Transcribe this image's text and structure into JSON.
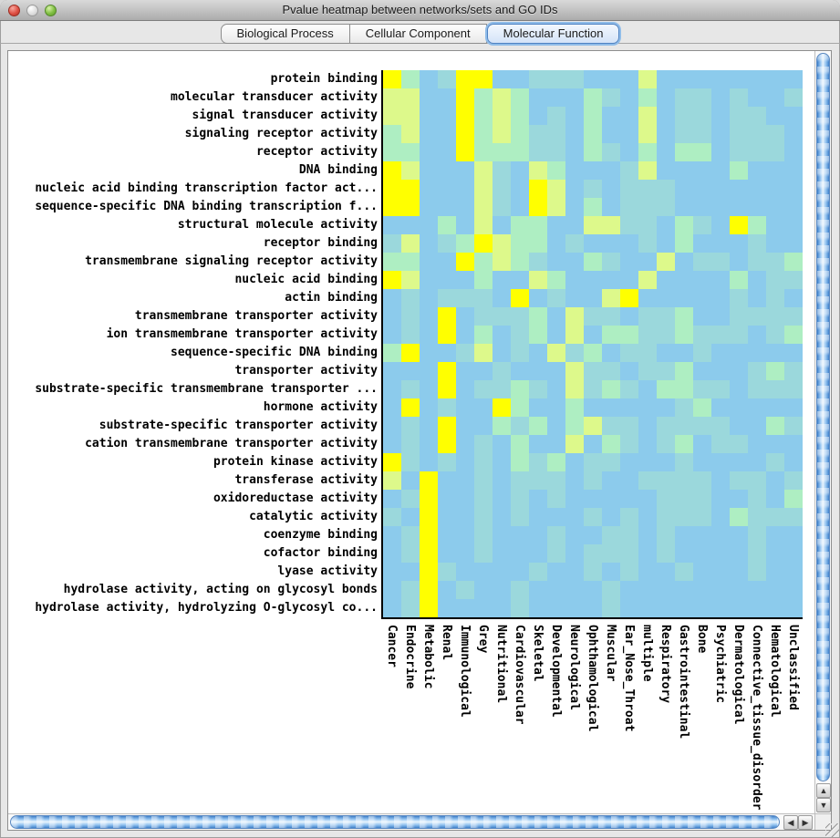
{
  "window": {
    "title": "Pvalue heatmap between networks/sets and GO IDs"
  },
  "tabs": [
    {
      "label": "Biological Process",
      "selected": false
    },
    {
      "label": "Cellular Component",
      "selected": false
    },
    {
      "label": "Molecular Function",
      "selected": true
    }
  ],
  "chart_data": {
    "type": "heatmap",
    "title": "Pvalue heatmap between networks/sets and GO IDs",
    "legend": "cell color encodes p-value significance: 0=light blue (low) to 4=bright yellow (high)",
    "palette": {
      "0": "#8CCBEC",
      "1": "#9BD8DC",
      "2": "#AEEEC2",
      "3": "#DDF98B",
      "4": "#FFFF00"
    },
    "rows": [
      "protein binding",
      "molecular transducer activity",
      "signal transducer activity",
      "signaling receptor activity",
      "receptor activity",
      "DNA binding",
      "nucleic acid binding transcription factor act...",
      "sequence-specific DNA binding transcription f...",
      "structural molecule activity",
      "receptor binding",
      "transmembrane signaling receptor activity",
      "nucleic acid binding",
      "actin binding",
      "transmembrane transporter activity",
      "ion transmembrane transporter activity",
      "sequence-specific DNA binding",
      "transporter activity",
      "substrate-specific transmembrane transporter ...",
      "hormone activity",
      "substrate-specific transporter activity",
      "cation transmembrane transporter activity",
      "protein kinase activity",
      "transferase activity",
      "oxidoreductase activity",
      "catalytic activity",
      "coenzyme binding",
      "cofactor binding",
      "lyase activity",
      "hydrolase activity, acting on glycosyl bonds",
      "hydrolase activity, hydrolyzing O-glycosyl co..."
    ],
    "columns": [
      "Cancer",
      "Endocrine",
      "Metabolic",
      "Renal",
      "Immunological",
      "Grey",
      "Nutritional",
      "Cardiovascular",
      "Skeletal",
      "Developmental",
      "Neurological",
      "Ophthamological",
      "Muscular",
      "Ear_Nose_Throat",
      "multiple",
      "Respiratory",
      "Gastrointestinal",
      "Bone",
      "Psychiatric",
      "Dermatological",
      "Connective_tissue_disorder",
      "Hematological",
      "Unclassified"
    ],
    "cells": [
      "42014400111000300000000",
      "33004232000210201101001",
      "33004232010200301101100",
      "23004232110200301101110",
      "22004222110210202201110",
      "43000310320001300002000",
      "44000310430101110000000",
      "44000310430201110000000",
      "00020302200331102104200",
      "13012432201000102000100",
      "22004232100210030110112",
      "43000200320000300002011",
      "01011104010034000001010",
      "01040111203110112001111",
      "01040201203022112111012",
      "24001301031201100100000",
      "00040010003110112000121",
      "01040112103121022110111",
      "04010042002000001200000",
      "01040021202311011110021",
      "01040102003021012011000",
      "41010102120110001000010",
      "30400101110100111101101",
      "01400101010000011100102",
      "10400101000101011102111",
      "01400100010011010000100",
      "01400100010111010000100",
      "00410000100101001000100",
      "01401001000010000000000",
      "01400001000010000000000"
    ]
  },
  "scrollbars": {
    "up_arrow": "▲",
    "down_arrow": "▼",
    "left_arrow": "◀",
    "right_arrow": "▶"
  }
}
